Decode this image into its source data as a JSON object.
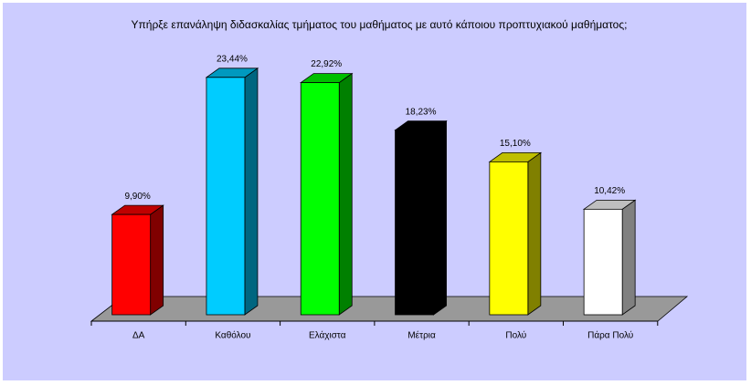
{
  "chart_data": {
    "type": "bar3d",
    "title": "Υπήρξε επανάληψη διδασκαλίας τμήματος του μαθήματος με αυτό κάποιου προπτυχιακού μαθήματος;",
    "categories": [
      "ΔΑ",
      "Καθόλου",
      "Ελάχιστα",
      "Μέτρια",
      "Πολύ",
      "Πάρα Πολύ"
    ],
    "values": [
      9.9,
      23.44,
      22.92,
      18.23,
      15.1,
      10.42
    ],
    "value_labels": [
      "9,90%",
      "23,44%",
      "22,92%",
      "18,23%",
      "15,10%",
      "10,42%"
    ],
    "colors": [
      "#ff0000",
      "#00ccff",
      "#00ff00",
      "#000000",
      "#ffff00",
      "#ffffff"
    ]
  }
}
